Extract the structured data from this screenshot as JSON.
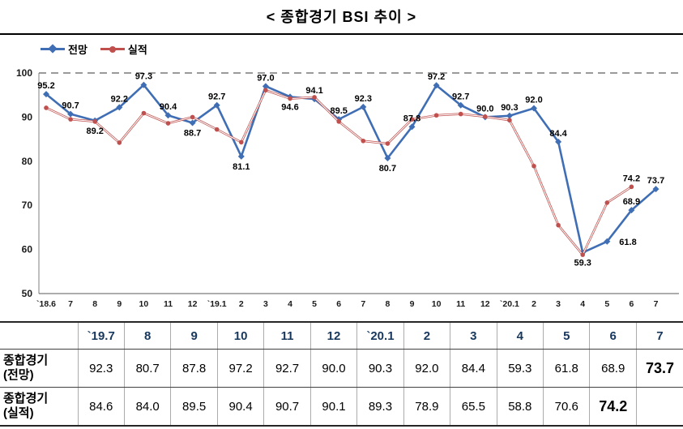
{
  "title": "< 종합경기 BSI 추이 >",
  "legend": [
    {
      "label": "전망",
      "color": "#3f6eb4",
      "marker": "diamond"
    },
    {
      "label": "실적",
      "color": "#c0504d",
      "marker": "circle"
    }
  ],
  "chart_data": {
    "type": "line",
    "title": "< 종합경기 BSI 추이 >",
    "xlabel": "",
    "ylabel": "",
    "ylim": [
      50,
      100
    ],
    "yticks": [
      50,
      60,
      70,
      80,
      90,
      100
    ],
    "grid": "dashed reference line at 100 only",
    "legend_position": "top-left",
    "categories": [
      "`18.6",
      "7",
      "8",
      "9",
      "10",
      "11",
      "12",
      "`19.1",
      "2",
      "3",
      "4",
      "5",
      "6",
      "7",
      "8",
      "9",
      "10",
      "11",
      "12",
      "`20.1",
      "2",
      "3",
      "4",
      "5",
      "6",
      "7"
    ],
    "series": [
      {
        "name": "전망",
        "color": "#3f6eb4",
        "marker": "diamond",
        "values": [
          95.2,
          90.7,
          89.2,
          92.2,
          97.3,
          90.4,
          88.7,
          92.7,
          81.1,
          97.0,
          94.6,
          94.1,
          89.5,
          92.3,
          80.7,
          87.8,
          97.2,
          92.7,
          90.0,
          90.3,
          92.0,
          84.4,
          59.3,
          61.8,
          68.9,
          73.7
        ]
      },
      {
        "name": "실적",
        "color": "#c0504d",
        "marker": "circle",
        "values": [
          92.1,
          89.5,
          89.0,
          84.2,
          90.9,
          88.6,
          90.0,
          87.2,
          84.3,
          96.1,
          94.2,
          94.5,
          89.0,
          84.6,
          84.0,
          89.5,
          90.4,
          90.7,
          90.1,
          89.3,
          78.9,
          65.5,
          58.8,
          70.6,
          74.2,
          null
        ]
      }
    ],
    "annotations": [
      {
        "index": 0,
        "series": 0,
        "text": "95.2",
        "pos": "above"
      },
      {
        "index": 1,
        "series": 0,
        "text": "90.7",
        "pos": "above"
      },
      {
        "index": 2,
        "series": 0,
        "text": "89.2",
        "pos": "below"
      },
      {
        "index": 3,
        "series": 0,
        "text": "92.2",
        "pos": "above"
      },
      {
        "index": 4,
        "series": 0,
        "text": "97.3",
        "pos": "above"
      },
      {
        "index": 5,
        "series": 0,
        "text": "90.4",
        "pos": "above"
      },
      {
        "index": 6,
        "series": 0,
        "text": "88.7",
        "pos": "below"
      },
      {
        "index": 7,
        "series": 0,
        "text": "92.7",
        "pos": "above"
      },
      {
        "index": 8,
        "series": 0,
        "text": "81.1",
        "pos": "below"
      },
      {
        "index": 9,
        "series": 0,
        "text": "97.0",
        "pos": "above"
      },
      {
        "index": 10,
        "series": 0,
        "text": "94.6",
        "pos": "below"
      },
      {
        "index": 11,
        "series": 0,
        "text": "94.1",
        "pos": "above"
      },
      {
        "index": 12,
        "series": 0,
        "text": "89.5",
        "pos": "above"
      },
      {
        "index": 13,
        "series": 0,
        "text": "92.3",
        "pos": "above"
      },
      {
        "index": 14,
        "series": 0,
        "text": "80.7",
        "pos": "below"
      },
      {
        "index": 15,
        "series": 0,
        "text": "87.8",
        "pos": "above"
      },
      {
        "index": 16,
        "series": 0,
        "text": "97.2",
        "pos": "above"
      },
      {
        "index": 17,
        "series": 0,
        "text": "92.7",
        "pos": "above"
      },
      {
        "index": 18,
        "series": 0,
        "text": "90.0",
        "pos": "above"
      },
      {
        "index": 19,
        "series": 0,
        "text": "90.3",
        "pos": "above"
      },
      {
        "index": 20,
        "series": 0,
        "text": "92.0",
        "pos": "above"
      },
      {
        "index": 21,
        "series": 0,
        "text": "84.4",
        "pos": "above"
      },
      {
        "index": 22,
        "series": 0,
        "text": "59.3",
        "pos": "below"
      },
      {
        "index": 23,
        "series": 0,
        "text": "61.8",
        "pos": "right"
      },
      {
        "index": 24,
        "series": 1,
        "text": "74.2",
        "pos": "above"
      },
      {
        "index": 24,
        "series": 0,
        "text": "68.9",
        "pos": "above"
      },
      {
        "index": 25,
        "series": 0,
        "text": "73.7",
        "pos": "above"
      }
    ]
  },
  "table": {
    "headers": [
      "",
      "`19.7",
      "8",
      "9",
      "10",
      "11",
      "12",
      "`20.1",
      "2",
      "3",
      "4",
      "5",
      "6",
      "7"
    ],
    "rows": [
      {
        "label_line1": "종합경기",
        "label_line2": "(전망)",
        "emphasis": 12,
        "values": [
          "92.3",
          "80.7",
          "87.8",
          "97.2",
          "92.7",
          "90.0",
          "90.3",
          "92.0",
          "84.4",
          "59.3",
          "61.8",
          "68.9",
          "73.7"
        ]
      },
      {
        "label_line1": "종합경기",
        "label_line2": "(실적)",
        "emphasis": 11,
        "values": [
          "84.6",
          "84.0",
          "89.5",
          "90.4",
          "90.7",
          "90.1",
          "89.3",
          "78.9",
          "65.5",
          "58.8",
          "70.6",
          "74.2",
          ""
        ]
      }
    ]
  }
}
